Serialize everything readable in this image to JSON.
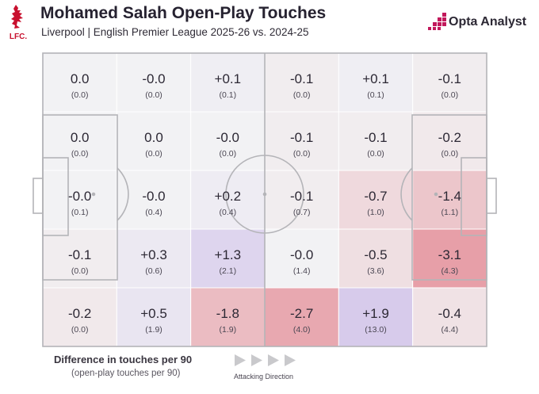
{
  "header": {
    "title": "Mohamed Salah Open-Play Touches",
    "subtitle": "Liverpool | English Premier League 2025-26 vs. 2024-25",
    "club_mark": "LFC.",
    "brand": "Opta Analyst"
  },
  "chart_data": {
    "type": "heatmap",
    "title": "Mohamed Salah Open-Play Touches",
    "subtitle": "Liverpool | English Premier League 2025-26 vs. 2024-25",
    "rows": 5,
    "cols": 6,
    "cells": [
      [
        {
          "diff": "0.0",
          "per90": "(0.0)"
        },
        {
          "diff": "-0.0",
          "per90": "(0.0)"
        },
        {
          "diff": "+0.1",
          "per90": "(0.1)"
        },
        {
          "diff": "-0.1",
          "per90": "(0.0)"
        },
        {
          "diff": "+0.1",
          "per90": "(0.1)"
        },
        {
          "diff": "-0.1",
          "per90": "(0.0)"
        }
      ],
      [
        {
          "diff": "0.0",
          "per90": "(0.0)"
        },
        {
          "diff": "0.0",
          "per90": "(0.0)"
        },
        {
          "diff": "-0.0",
          "per90": "(0.0)"
        },
        {
          "diff": "-0.1",
          "per90": "(0.0)"
        },
        {
          "diff": "-0.1",
          "per90": "(0.0)"
        },
        {
          "diff": "-0.2",
          "per90": "(0.0)"
        }
      ],
      [
        {
          "diff": "-0.0",
          "per90": "(0.1)"
        },
        {
          "diff": "-0.0",
          "per90": "(0.4)"
        },
        {
          "diff": "+0.2",
          "per90": "(0.4)"
        },
        {
          "diff": "-0.1",
          "per90": "(0.7)"
        },
        {
          "diff": "-0.7",
          "per90": "(1.0)"
        },
        {
          "diff": "-1.4",
          "per90": "(1.1)"
        }
      ],
      [
        {
          "diff": "-0.1",
          "per90": "(0.0)"
        },
        {
          "diff": "+0.3",
          "per90": "(0.6)"
        },
        {
          "diff": "+1.3",
          "per90": "(2.1)"
        },
        {
          "diff": "-0.0",
          "per90": "(1.4)"
        },
        {
          "diff": "-0.5",
          "per90": "(3.6)"
        },
        {
          "diff": "-3.1",
          "per90": "(4.3)"
        }
      ],
      [
        {
          "diff": "-0.2",
          "per90": "(0.0)"
        },
        {
          "diff": "+0.5",
          "per90": "(1.9)"
        },
        {
          "diff": "-1.8",
          "per90": "(1.9)"
        },
        {
          "diff": "-2.7",
          "per90": "(4.0)"
        },
        {
          "diff": "+1.9",
          "per90": "(13.0)"
        },
        {
          "diff": "-0.4",
          "per90": "(4.4)"
        }
      ]
    ],
    "scale": {
      "positive_color": "#9a72d8",
      "negative_color": "#d93a4a",
      "neutral_color": "#f2f2f4",
      "max_abs": 3.1
    },
    "legend": {
      "title": "Difference in touches per 90",
      "subtitle": "(open-play touches per 90)",
      "direction_label": "Attacking Direction"
    }
  },
  "colors": {
    "pitch_line": "#b4b4b8",
    "text": "#2c2834",
    "brand_magenta": "#c2185b",
    "crest_red": "#c8102e",
    "arrow_gray": "#c9c9cc"
  }
}
